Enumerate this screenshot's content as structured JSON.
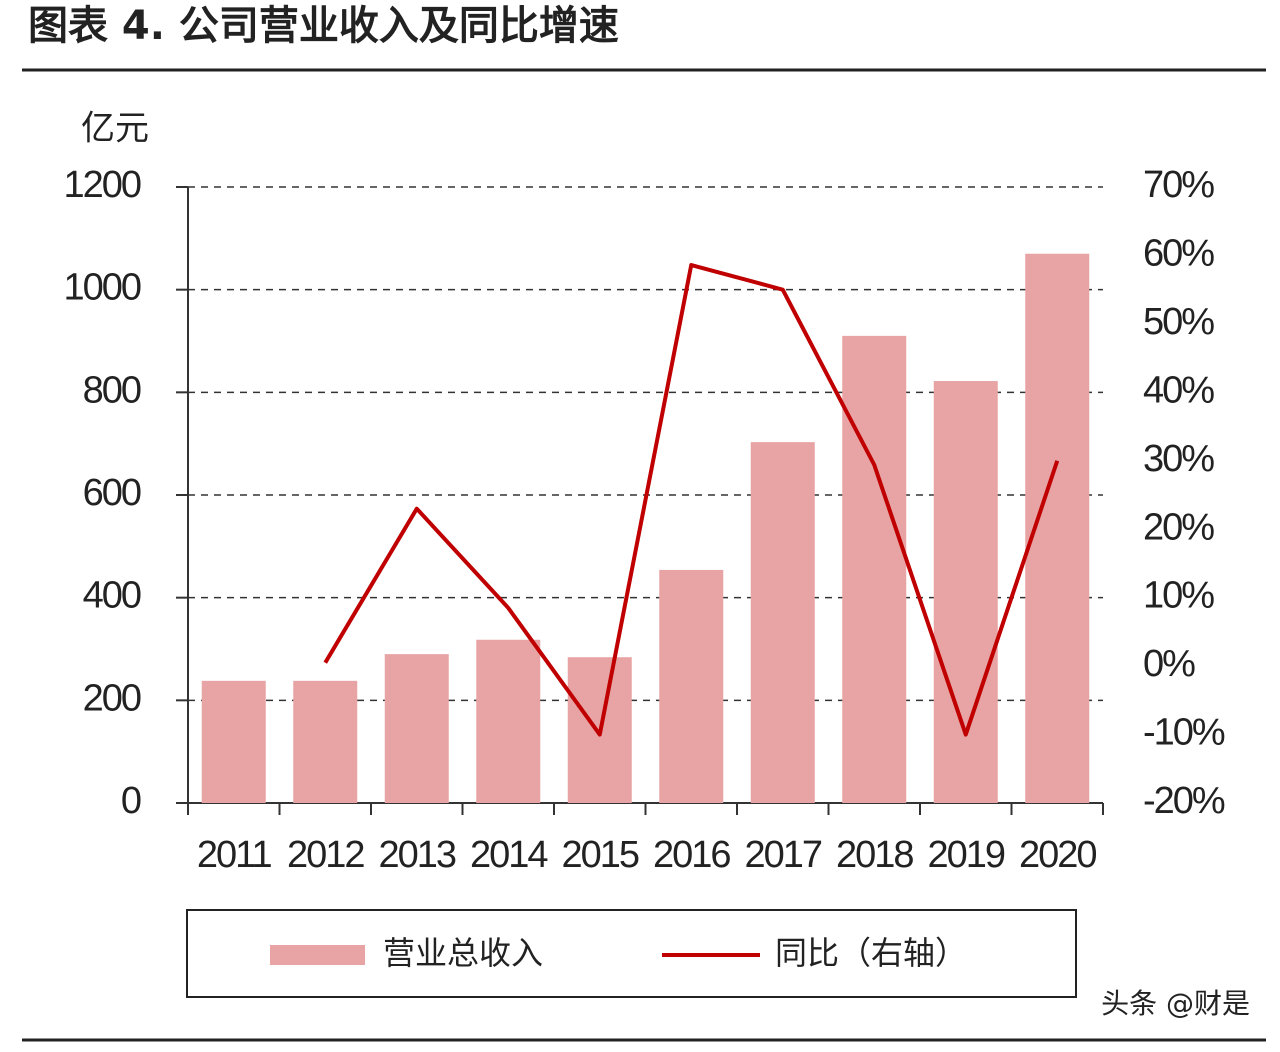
{
  "chart_data": {
    "type": "bar",
    "title": "图表 4. 公司营业收入及同比增速",
    "y_label": "亿元",
    "categories": [
      "2011",
      "2012",
      "2013",
      "2014",
      "2015",
      "2016",
      "2017",
      "2018",
      "2019",
      "2020"
    ],
    "series": [
      {
        "name": "营业总收入",
        "type": "bar",
        "color": "#e8a4a4",
        "values": [
          238,
          238,
          290,
          318,
          284,
          454,
          703,
          910,
          822,
          1070
        ]
      },
      {
        "name": "同比（右轴）",
        "type": "line",
        "axis": "y2",
        "color": "#c00000",
        "values": [
          null,
          0.5,
          23,
          8.5,
          -10,
          58.6,
          55,
          29.4,
          -10,
          30
        ]
      }
    ],
    "ylim": [
      0,
      1200
    ],
    "yticks": [
      0,
      200,
      400,
      600,
      800,
      1000,
      1200
    ],
    "y2lim": [
      -20,
      70
    ],
    "y2ticks": [
      {
        "value": -20,
        "label": "-20%"
      },
      {
        "value": -10,
        "label": "-10%"
      },
      {
        "value": 0,
        "label": "0%"
      },
      {
        "value": 10,
        "label": "10%"
      },
      {
        "value": 20,
        "label": "20%"
      },
      {
        "value": 30,
        "label": "30%"
      },
      {
        "value": 40,
        "label": "40%"
      },
      {
        "value": 50,
        "label": "50%"
      },
      {
        "value": 60,
        "label": "60%"
      },
      {
        "value": 70,
        "label": "70%"
      }
    ],
    "grid": true,
    "legend": "bottom",
    "watermark": "头条 @财是"
  }
}
